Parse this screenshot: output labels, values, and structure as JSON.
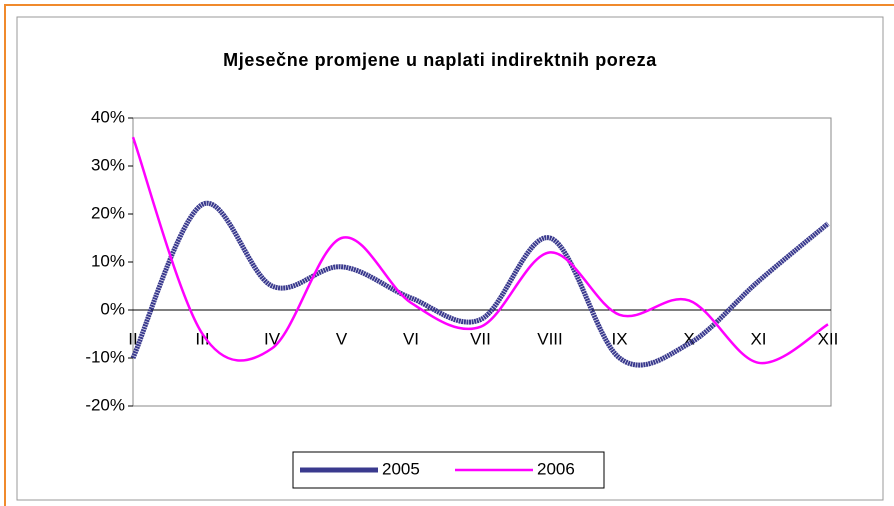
{
  "chart_data": {
    "type": "line",
    "title": "Mjesečne promjene u naplati indirektnih poreza",
    "categories": [
      "II",
      "III",
      "IV",
      "V",
      "VI",
      "VII",
      "VIII",
      "IX",
      "X",
      "XI",
      "XII"
    ],
    "series": [
      {
        "name": "2005",
        "color": "#3a3a8e",
        "values": [
          -10,
          22,
          5,
          9,
          2.5,
          -2,
          15,
          -10,
          -7,
          6,
          18
        ]
      },
      {
        "name": "2006",
        "color": "#ff00ff",
        "values": [
          36,
          -5,
          -8,
          15,
          1.5,
          -3.5,
          12,
          -1,
          2,
          -11,
          -3
        ]
      }
    ],
    "ylim": [
      -20,
      40
    ],
    "yticks": [
      {
        "value": -20,
        "label": "-20%"
      },
      {
        "value": -10,
        "label": "-10%"
      },
      {
        "value": 0,
        "label": "0%"
      },
      {
        "value": 10,
        "label": "10%"
      },
      {
        "value": 20,
        "label": "20%"
      },
      {
        "value": 30,
        "label": "30%"
      },
      {
        "value": 40,
        "label": "40%"
      }
    ],
    "legend": "bottom"
  }
}
